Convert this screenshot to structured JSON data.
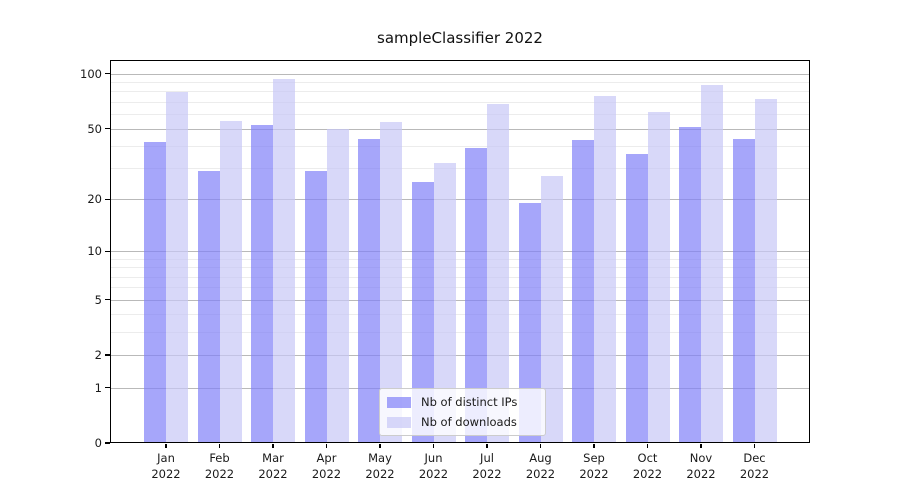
{
  "title": "sampleClassifier 2022",
  "chart_data": {
    "type": "bar",
    "title": "sampleClassifier 2022",
    "yscale": "log1p",
    "xlabel": "",
    "ylabel": "",
    "categories": [
      "Jan",
      "Feb",
      "Mar",
      "Apr",
      "May",
      "Jun",
      "Jul",
      "Aug",
      "Sep",
      "Oct",
      "Nov",
      "Dec"
    ],
    "category_year": "2022",
    "series": [
      {
        "name": "Nb of distinct IPs",
        "color": "#8080f8",
        "values": [
          42,
          29,
          52,
          29,
          44,
          25,
          39,
          19,
          43,
          36,
          51,
          44
        ]
      },
      {
        "name": "Nb of downloads",
        "color": "#c8c8f6",
        "values": [
          79,
          55,
          94,
          50,
          54,
          32,
          68,
          27,
          76,
          62,
          87,
          73
        ]
      }
    ],
    "y_major_ticks": [
      0,
      1,
      2,
      5,
      10,
      20,
      50,
      100
    ],
    "y_minor_ticks": [
      3,
      4,
      6,
      7,
      8,
      9,
      30,
      40,
      60,
      70,
      80,
      90
    ],
    "ylim": [
      0,
      119
    ],
    "grid": "on",
    "legend_position": "bottom-center"
  },
  "colors": {
    "bar_ips": "#8080f8",
    "bar_downloads": "#c8c8f6",
    "grid_major": "#b9b9b9",
    "grid_minor": "#ececec",
    "axis": "#000000",
    "text": "#1a1a1a"
  }
}
